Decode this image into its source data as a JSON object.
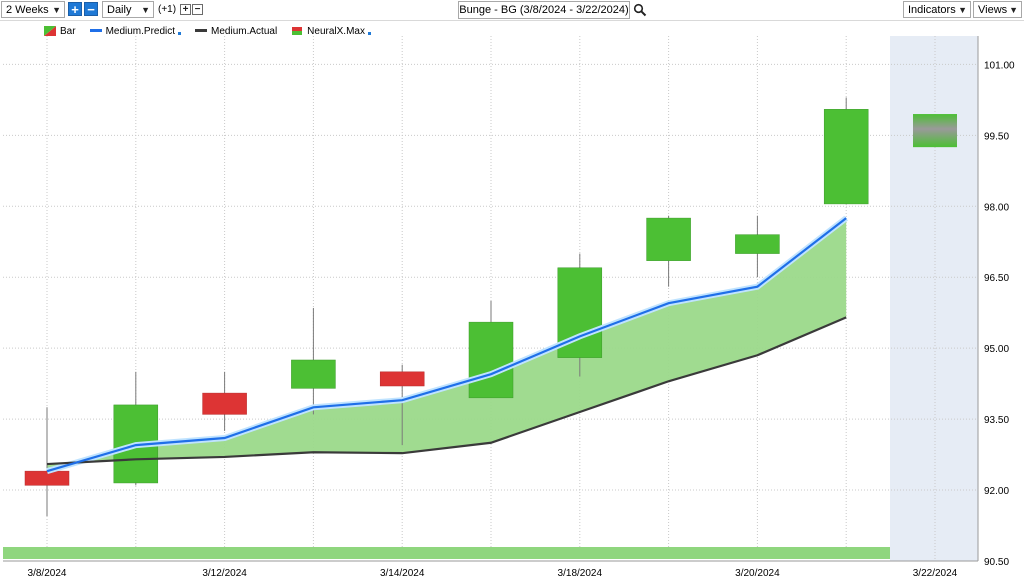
{
  "toolbar": {
    "period": "2 Weeks",
    "interval": "Daily",
    "zoom": "(+1)",
    "title": "Bunge - BG (3/8/2024 - 3/22/2024)",
    "indicators": "Indicators",
    "views": "Views"
  },
  "legend": [
    {
      "label": "Bar",
      "has_dot": false
    },
    {
      "label": "Medium.Predict",
      "has_dot": true,
      "color": "#1f6fe8"
    },
    {
      "label": "Medium.Actual",
      "has_dot": false,
      "color": "#3a3a3a"
    },
    {
      "label": "NeuralX.Max",
      "has_dot": true
    }
  ],
  "colors": {
    "up": "#4cbf34",
    "down": "#dd3434",
    "predict": "#1f6fe8",
    "actual": "#3a3a3a",
    "fill": "#9bd98a",
    "band": "#8fd67e",
    "forecast_bg": "#e6ecf5"
  },
  "chart_data": {
    "type": "candlestick",
    "title": "Bunge - BG (3/8/2024 - 3/22/2024)",
    "x_labels": [
      "3/8/2024",
      "",
      "3/12/2024",
      "",
      "3/14/2024",
      "",
      "3/18/2024",
      "",
      "3/20/2024",
      "",
      "3/22/2024"
    ],
    "ylim": [
      90.5,
      101.6
    ],
    "yticks": [
      "101.00",
      "99.50",
      "98.00",
      "96.50",
      "95.00",
      "93.50",
      "92.00",
      "90.50"
    ],
    "candles": [
      {
        "open": 92.4,
        "high": 93.75,
        "low": 91.45,
        "close": 92.1,
        "dir": "down"
      },
      {
        "open": 92.15,
        "high": 94.5,
        "low": 92.1,
        "close": 93.8,
        "dir": "up"
      },
      {
        "open": 94.05,
        "high": 94.5,
        "low": 93.25,
        "close": 93.6,
        "dir": "down"
      },
      {
        "open": 94.15,
        "high": 95.85,
        "low": 93.6,
        "close": 94.75,
        "dir": "up"
      },
      {
        "open": 94.5,
        "high": 94.65,
        "low": 92.95,
        "close": 94.2,
        "dir": "down"
      },
      {
        "open": 93.95,
        "high": 96.0,
        "low": 93.95,
        "close": 95.55,
        "dir": "up"
      },
      {
        "open": 94.8,
        "high": 97.0,
        "low": 94.4,
        "close": 96.7,
        "dir": "up"
      },
      {
        "open": 96.85,
        "high": 97.8,
        "low": 96.3,
        "close": 97.75,
        "dir": "up"
      },
      {
        "open": 97.0,
        "high": 97.8,
        "low": 96.5,
        "close": 97.4,
        "dir": "up"
      },
      {
        "open": 98.05,
        "high": 100.3,
        "low": 98.05,
        "close": 100.05,
        "dir": "up"
      }
    ],
    "series": [
      {
        "name": "Medium.Predict",
        "values": [
          92.4,
          92.95,
          93.1,
          93.75,
          93.9,
          94.45,
          95.25,
          95.95,
          96.3,
          97.75
        ]
      },
      {
        "name": "Medium.Actual",
        "values": [
          92.55,
          92.65,
          92.7,
          92.8,
          92.78,
          93.0,
          93.65,
          94.3,
          94.85,
          95.65
        ]
      }
    ],
    "forecast": {
      "high": 99.95,
      "low": 99.25
    }
  }
}
